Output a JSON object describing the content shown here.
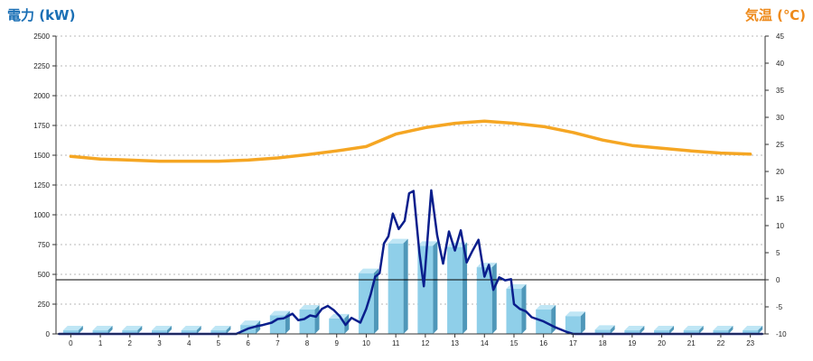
{
  "chart_data": {
    "type": "bar",
    "y_left": {
      "label": "電力 (kW)",
      "color": "#1a6fb5",
      "range": [
        0,
        2500
      ],
      "ticks": [
        "0",
        "250",
        "500",
        "750",
        "1000",
        "1250",
        "1500",
        "1750",
        "2000",
        "2250",
        "2500"
      ]
    },
    "y_right": {
      "label": "気温 (℃)",
      "color": "#ee8a1b",
      "range": [
        -10,
        45
      ],
      "ticks": [
        "-10",
        "-5",
        "0",
        "5",
        "10",
        "15",
        "20",
        "25",
        "30",
        "35",
        "40",
        "45"
      ]
    },
    "categories": [
      "0",
      "1",
      "2",
      "3",
      "4",
      "5",
      "6",
      "7",
      "8",
      "9",
      "10",
      "11",
      "12",
      "13",
      "14",
      "15",
      "16",
      "17",
      "18",
      "19",
      "20",
      "21",
      "22",
      "23"
    ],
    "series": [
      {
        "kind": "bar",
        "axis": "left",
        "color": "#8fcfe9",
        "values": [
          30,
          30,
          30,
          30,
          30,
          30,
          75,
          155,
          205,
          130,
          510,
          760,
          740,
          730,
          560,
          380,
          205,
          150,
          35,
          30,
          30,
          30,
          30,
          30
        ]
      },
      {
        "kind": "line",
        "axis": "right",
        "color": "#f5a623",
        "x": [
          0,
          1,
          2,
          3,
          4,
          5,
          6,
          7,
          8,
          9,
          10,
          11,
          12,
          13,
          14,
          15,
          16,
          17,
          18,
          19,
          20,
          21,
          22,
          23
        ],
        "values": [
          22.8,
          22.3,
          22.1,
          21.9,
          21.9,
          21.9,
          22.1,
          22.5,
          23.1,
          23.8,
          24.6,
          26.9,
          28.1,
          28.9,
          29.3,
          28.9,
          28.3,
          27.2,
          25.8,
          24.8,
          24.3,
          23.8,
          23.4,
          23.2
        ]
      },
      {
        "kind": "line",
        "axis": "left",
        "color": "#0a1e8c",
        "x": [
          -0.4,
          0,
          1,
          2,
          3,
          4,
          5,
          5.6,
          6,
          6.3,
          6.5,
          6.8,
          7,
          7.2,
          7.5,
          7.7,
          7.9,
          8.1,
          8.3,
          8.5,
          8.7,
          8.9,
          9.1,
          9.3,
          9.5,
          9.8,
          10,
          10.15,
          10.3,
          10.45,
          10.6,
          10.75,
          10.9,
          11.1,
          11.3,
          11.45,
          11.6,
          11.8,
          11.95,
          12.2,
          12.4,
          12.6,
          12.8,
          13,
          13.2,
          13.4,
          13.6,
          13.8,
          14,
          14.15,
          14.3,
          14.5,
          14.7,
          14.9,
          15,
          15.2,
          15.4,
          15.6,
          16,
          16.4,
          16.8,
          17,
          17.3,
          17.6,
          17.8,
          18,
          18.5,
          19,
          20,
          21,
          22,
          23,
          23.4
        ],
        "values": [
          0,
          0,
          0,
          0,
          0,
          0,
          0,
          0,
          45,
          65,
          75,
          95,
          125,
          130,
          170,
          115,
          125,
          155,
          145,
          210,
          235,
          200,
          150,
          75,
          135,
          95,
          210,
          330,
          480,
          510,
          760,
          820,
          1010,
          880,
          950,
          1180,
          1200,
          680,
          400,
          1205,
          830,
          590,
          860,
          700,
          870,
          600,
          700,
          790,
          480,
          580,
          370,
          475,
          450,
          460,
          250,
          210,
          190,
          140,
          105,
          55,
          15,
          0,
          0,
          0,
          0,
          0,
          0,
          0,
          0,
          0,
          0,
          0,
          0
        ]
      }
    ]
  }
}
